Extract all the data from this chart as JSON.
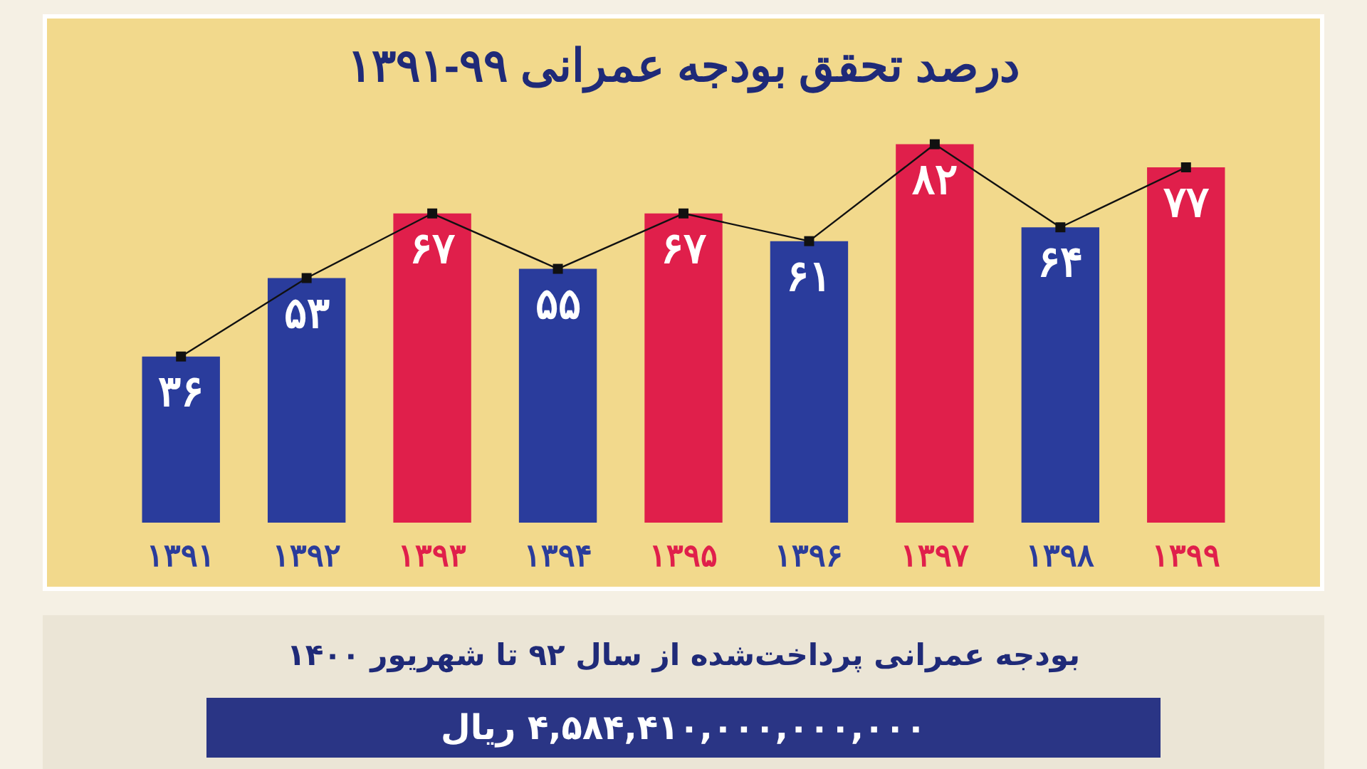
{
  "chart_data": {
    "type": "bar",
    "title": "درصد تحقق بودجه عمرانی ۹۹-۱۳۹۱",
    "categories": [
      "۱۳۹۱",
      "۱۳۹۲",
      "۱۳۹۳",
      "۱۳۹۴",
      "۱۳۹۵",
      "۱۳۹۶",
      "۱۳۹۷",
      "۱۳۹۸",
      "۱۳۹۹"
    ],
    "series": [
      {
        "values": [
          36,
          53,
          67,
          55,
          67,
          61,
          82,
          64,
          77
        ],
        "colors": [
          "#2a3c9c",
          "#2a3c9c",
          "#e01f4b",
          "#2a3c9c",
          "#e01f4b",
          "#2a3c9c",
          "#e01f4b",
          "#2a3c9c",
          "#e01f4b"
        ],
        "value_labels": [
          "۳۶",
          "۵۳",
          "۶۷",
          "۵۵",
          "۶۷",
          "۶۱",
          "۸۲",
          "۶۴",
          "۷۷"
        ]
      },
      {
        "type": "line",
        "color": "#111111",
        "values": [
          36,
          53,
          67,
          55,
          67,
          61,
          82,
          64,
          77
        ],
        "marker": "square"
      }
    ],
    "annotations": [
      "بودجه عمرانی پرداخت‌شده از سال ۹۲ تا شهریور ۱۴۰۰",
      "۴,۵۸۴,۴۱۰,۰۰۰,۰۰۰,۰۰۰ ریال"
    ],
    "grid": false
  }
}
